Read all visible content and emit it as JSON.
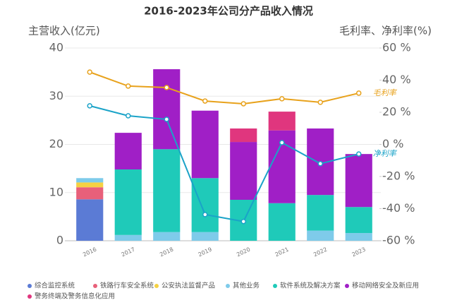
{
  "chart_data": {
    "type": "bar",
    "title": "2016-2023年公司分产品收入情况",
    "ylabel": "主营收入(亿元)",
    "y2label": "毛利率、净利率(%)",
    "categories": [
      "2016",
      "2017",
      "2018",
      "2019",
      "2020",
      "2021",
      "2022",
      "2023"
    ],
    "ylim": [
      0,
      40
    ],
    "yticks": [
      0,
      10,
      20,
      30,
      40
    ],
    "y2lim": [
      -60,
      60
    ],
    "y2ticks": [
      {
        "value": -60,
        "label": "-60 %"
      },
      {
        "value": -40,
        "label": "-40 %"
      },
      {
        "value": -20,
        "label": "-20 %"
      },
      {
        "value": 0,
        "label": "0 %"
      },
      {
        "value": 20,
        "label": "20 %"
      },
      {
        "value": 40,
        "label": "40 %"
      },
      {
        "value": 60,
        "label": "60 %"
      }
    ],
    "grid": true,
    "legend": "bottom",
    "series": [
      {
        "name": "综合监控系统",
        "type": "bar",
        "color": "#5b7bd5",
        "values": [
          8.6,
          0,
          0,
          0,
          0,
          0,
          0,
          0
        ]
      },
      {
        "name": "铁路行车安全系统",
        "type": "bar",
        "color": "#e8607a",
        "values": [
          2.5,
          0,
          0,
          0,
          0,
          0,
          0,
          0
        ]
      },
      {
        "name": "公安执法监督产品",
        "type": "bar",
        "color": "#f5d142",
        "values": [
          1.0,
          0,
          0,
          0,
          0,
          0,
          0,
          0
        ]
      },
      {
        "name": "其他业务",
        "type": "bar",
        "color": "#7ecbea",
        "values": [
          0.9,
          1.2,
          1.8,
          1.8,
          0,
          0,
          2.1,
          1.6
        ]
      },
      {
        "name": "软件系统及解决方案",
        "type": "bar",
        "color": "#1fcab9",
        "values": [
          0,
          13.6,
          17.2,
          11.2,
          8.5,
          7.8,
          7.4,
          5.4
        ]
      },
      {
        "name": "移动网络安全及新应用",
        "type": "bar",
        "color": "#a01fc6",
        "values": [
          0,
          7.6,
          16.6,
          14.0,
          12.0,
          15.1,
          13.8,
          11.0
        ]
      },
      {
        "name": "警务终端及警务信息化应用",
        "type": "bar",
        "color": "#e0367e",
        "values": [
          0,
          0,
          0,
          0,
          2.8,
          3.9,
          0,
          0
        ]
      },
      {
        "name": "毛利率",
        "type": "line",
        "axis": "y2",
        "color": "#e8a21c",
        "values": [
          45,
          36.3,
          35.4,
          27,
          25.3,
          28.4,
          26.2,
          31.9
        ]
      },
      {
        "name": "净利率",
        "type": "line",
        "axis": "y2",
        "color": "#1aa3c8",
        "values": [
          24,
          17.8,
          15.6,
          -43.7,
          -48,
          1.1,
          -12,
          -6
        ]
      }
    ]
  }
}
